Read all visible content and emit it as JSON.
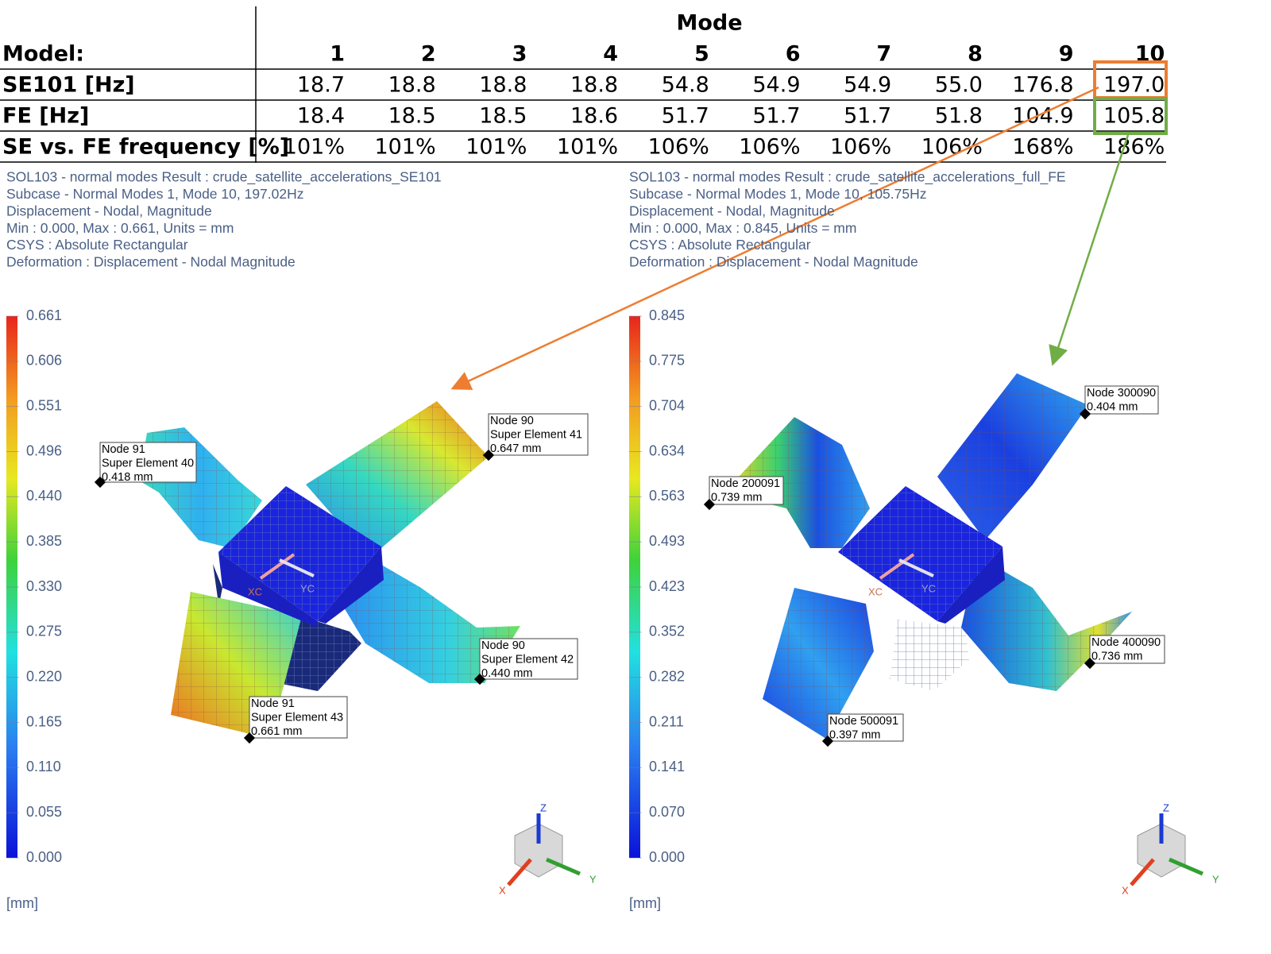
{
  "table": {
    "group_header": "Mode",
    "row_header": "Model:",
    "modes": [
      "1",
      "2",
      "3",
      "4",
      "5",
      "6",
      "7",
      "8",
      "9",
      "10"
    ],
    "rows": [
      {
        "label": "SE101 [Hz]",
        "cells": [
          "18.7",
          "18.8",
          "18.8",
          "18.8",
          "54.8",
          "54.9",
          "54.9",
          "55.0",
          "176.8",
          "197.0"
        ]
      },
      {
        "label": "FE [Hz]",
        "cells": [
          "18.4",
          "18.5",
          "18.5",
          "18.6",
          "51.7",
          "51.7",
          "51.7",
          "51.8",
          "104.9",
          "105.8"
        ]
      },
      {
        "label": "SE vs. FE frequency [%]",
        "cells": [
          "101%",
          "101%",
          "101%",
          "101%",
          "106%",
          "106%",
          "106%",
          "106%",
          "168%",
          "186%"
        ]
      }
    ]
  },
  "panels": [
    {
      "info": [
        "SOL103 - normal modes Result : crude_satellite_accelerations_SE101",
        "Subcase - Normal Modes 1, Mode 10, 197.02Hz",
        "Displacement - Nodal, Magnitude",
        "Min : 0.000, Max : 0.661, Units = mm",
        "CSYS : Absolute Rectangular",
        "Deformation : Displacement - Nodal Magnitude"
      ],
      "colorbar": [
        "0.661",
        "0.606",
        "0.551",
        "0.496",
        "0.440",
        "0.385",
        "0.330",
        "0.275",
        "0.220",
        "0.165",
        "0.110",
        "0.055",
        "0.000"
      ],
      "unit": "[mm]",
      "notes": [
        [
          "Node 91",
          "Super Element 40",
          "0.418 mm"
        ],
        [
          "Node 90",
          "Super Element 41",
          "0.647 mm"
        ],
        [
          "Node 90",
          "Super Element 42",
          "0.440 mm"
        ],
        [
          "Node 91",
          "Super Element 43",
          "0.661 mm"
        ]
      ],
      "csys": [
        "XC",
        "YC"
      ],
      "triad": [
        "Z",
        "X",
        "Y"
      ]
    },
    {
      "info": [
        "SOL103 - normal modes Result : crude_satellite_accelerations_full_FE",
        "Subcase - Normal Modes 1, Mode 10, 105.75Hz",
        "Displacement - Nodal, Magnitude",
        "Min : 0.000, Max : 0.845, Units = mm",
        "CSYS : Absolute Rectangular",
        "Deformation : Displacement - Nodal Magnitude"
      ],
      "colorbar": [
        "0.845",
        "0.775",
        "0.704",
        "0.634",
        "0.563",
        "0.493",
        "0.423",
        "0.352",
        "0.282",
        "0.211",
        "0.141",
        "0.070",
        "0.000"
      ],
      "unit": "[mm]",
      "notes": [
        [
          "Node 300090",
          "0.404 mm"
        ],
        [
          "Node 200091",
          "0.739 mm"
        ],
        [
          "Node 400090",
          "0.736 mm"
        ],
        [
          "Node 500091",
          "0.397 mm"
        ]
      ],
      "csys": [
        "XC",
        "YC"
      ],
      "triad": [
        "Z",
        "X",
        "Y"
      ]
    }
  ]
}
